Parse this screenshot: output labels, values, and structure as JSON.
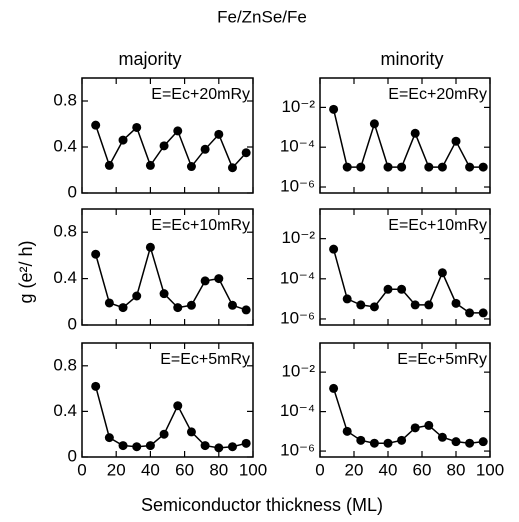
{
  "figure": {
    "title": "Fe/ZnSe/Fe",
    "column_labels": [
      "majority",
      "minority"
    ],
    "ylabel": "g (e²/ h)",
    "xlabel": "Semiconductor thickness (ML)"
  },
  "chart_data": [
    {
      "type": "line",
      "annotation": "E=Ec+20mRy",
      "color": "#000000",
      "x": [
        8,
        16,
        24,
        32,
        40,
        48,
        56,
        64,
        72,
        80,
        88,
        96
      ],
      "values": [
        0.59,
        0.24,
        0.46,
        0.57,
        0.24,
        0.41,
        0.54,
        0.23,
        0.38,
        0.51,
        0.22,
        0.35
      ],
      "xlim": [
        0,
        100
      ],
      "xticks": [
        0,
        20,
        40,
        60,
        80,
        100
      ],
      "ylim": [
        0,
        1
      ],
      "yticks": [
        0,
        0.4,
        0.8
      ]
    },
    {
      "type": "line",
      "annotation": "E=Ec+10mRy",
      "color": "#000000",
      "x": [
        8,
        16,
        24,
        32,
        40,
        48,
        56,
        64,
        72,
        80,
        88,
        96
      ],
      "values": [
        0.61,
        0.19,
        0.15,
        0.25,
        0.67,
        0.27,
        0.15,
        0.17,
        0.38,
        0.4,
        0.17,
        0.13
      ],
      "xlim": [
        0,
        100
      ],
      "xticks": [
        0,
        20,
        40,
        60,
        80,
        100
      ],
      "ylim": [
        0,
        1
      ],
      "yticks": [
        0,
        0.4,
        0.8
      ]
    },
    {
      "type": "line",
      "annotation": "E=Ec+5mRy",
      "color": "#000000",
      "x": [
        8,
        16,
        24,
        32,
        40,
        48,
        56,
        64,
        72,
        80,
        88,
        96
      ],
      "values": [
        0.62,
        0.17,
        0.1,
        0.09,
        0.1,
        0.2,
        0.45,
        0.22,
        0.1,
        0.08,
        0.09,
        0.12
      ],
      "xlim": [
        0,
        100
      ],
      "xticks": [
        0,
        20,
        40,
        60,
        80,
        100
      ],
      "ylim": [
        0,
        1
      ],
      "yticks": [
        0,
        0.4,
        0.8
      ]
    },
    {
      "type": "line",
      "annotation": "E=Ec+20mRy",
      "color": "#000000",
      "log_y": true,
      "x": [
        8,
        16,
        24,
        32,
        40,
        48,
        56,
        64,
        72,
        80,
        88,
        96
      ],
      "values": [
        0.008,
        1e-05,
        1e-05,
        0.0015,
        1e-05,
        1e-05,
        0.0005,
        1e-05,
        1e-05,
        0.0002,
        1e-05,
        1e-05
      ],
      "xlim": [
        0,
        100
      ],
      "xticks": [
        0,
        20,
        40,
        60,
        80,
        100
      ],
      "ylim": [
        5e-07,
        0.3
      ],
      "yticks": [
        {
          "value": 1e-06,
          "label": "10⁻⁶"
        },
        {
          "value": 0.0001,
          "label": "10⁻⁴"
        },
        {
          "value": 0.01,
          "label": "10⁻²"
        }
      ]
    },
    {
      "type": "line",
      "annotation": "E=Ec+10mRy",
      "color": "#000000",
      "log_y": true,
      "x": [
        8,
        16,
        24,
        32,
        40,
        48,
        56,
        64,
        72,
        80,
        88,
        96
      ],
      "values": [
        0.003,
        1e-05,
        5e-06,
        4e-06,
        3e-05,
        3e-05,
        5e-06,
        5e-06,
        0.0002,
        6e-06,
        2e-06,
        2e-06
      ],
      "xlim": [
        0,
        100
      ],
      "xticks": [
        0,
        20,
        40,
        60,
        80,
        100
      ],
      "ylim": [
        5e-07,
        0.3
      ],
      "yticks": [
        {
          "value": 1e-06,
          "label": "10⁻⁶"
        },
        {
          "value": 0.0001,
          "label": "10⁻⁴"
        },
        {
          "value": 0.01,
          "label": "10⁻²"
        }
      ]
    },
    {
      "type": "line",
      "annotation": "E=Ec+5mRy",
      "color": "#000000",
      "log_y": true,
      "x": [
        8,
        16,
        24,
        32,
        40,
        48,
        56,
        64,
        72,
        80,
        88,
        96
      ],
      "values": [
        0.0015,
        1e-05,
        3.5e-06,
        2.5e-06,
        2.5e-06,
        3.5e-06,
        1.5e-05,
        2e-05,
        5e-06,
        3e-06,
        2.5e-06,
        3e-06
      ],
      "xlim": [
        0,
        100
      ],
      "xticks": [
        0,
        20,
        40,
        60,
        80,
        100
      ],
      "ylim": [
        5e-07,
        0.3
      ],
      "yticks": [
        {
          "value": 1e-06,
          "label": "10⁻⁶"
        },
        {
          "value": 0.0001,
          "label": "10⁻⁴"
        },
        {
          "value": 0.01,
          "label": "10⁻²"
        }
      ]
    }
  ]
}
